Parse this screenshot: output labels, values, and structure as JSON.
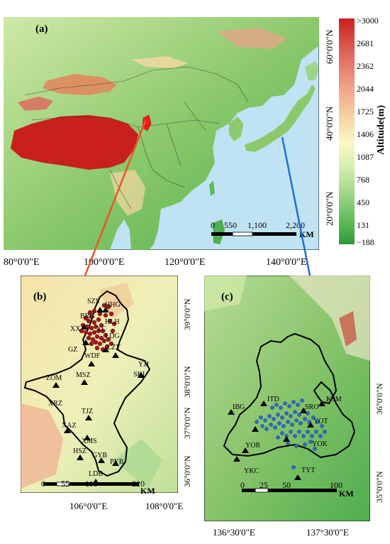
{
  "panels": {
    "a": {
      "label": "(a)",
      "lon_ticks": [
        "80°0'0\"E",
        "100°0'0\"E",
        "120°0'0\"E",
        "140°0'0\"E"
      ],
      "lat_ticks": [
        "60°0'0\"N",
        "40°0'0\"N",
        "20°0'0\"N"
      ],
      "scale_bar": {
        "ticks": [
          "0",
          "550",
          "1,100",
          "2,200"
        ],
        "unit": "KM"
      }
    },
    "b": {
      "label": "(b)",
      "lon_ticks": [
        "106°0'0\"E",
        "108°0'0\"E"
      ],
      "lat_ticks": [
        "39°0'0\"N",
        "38°0'0\"N",
        "37°0'0\"N",
        "36°0'0\"N"
      ],
      "scale_bar": {
        "ticks": [
          "0",
          "55",
          "110",
          "220"
        ],
        "unit": "KM"
      },
      "stations": [
        "SZS",
        "HHG",
        "BRG",
        "HLH",
        "XX",
        "YC",
        "LDG",
        "GZ",
        "LZY",
        "WDF",
        "YJJ",
        "SKL",
        "ZOM",
        "MSZ",
        "XRZ",
        "TJZ",
        "XAZ",
        "XMS",
        "HSZ",
        "GYB",
        "PYB",
        "LDB"
      ]
    },
    "c": {
      "label": "(c)",
      "lon_ticks": [
        "136°30'0\"E",
        "137°30'0\"E"
      ],
      "lat_ticks": [
        "36°0'0\"N",
        "35°0'0\"N"
      ],
      "scale_bar": {
        "ticks": [
          "0",
          "25",
          "50",
          "100"
        ],
        "unit": "KM"
      },
      "stations": [
        "IBG",
        "ITD",
        "KSM",
        "SRO",
        "YOT",
        "YOK",
        "YOR",
        "YKC",
        "TYT"
      ]
    }
  },
  "legend": {
    "title": "Altitude(m)",
    "ticks": [
      ">3000",
      "2681",
      "2362",
      "2044",
      "1725",
      "1406",
      "1087",
      "768",
      "450",
      "131",
      "−188"
    ],
    "colors": [
      "#c8201e",
      "#e0635a",
      "#f0a08a",
      "#f6d7a5",
      "#fbf7c7",
      "#d9efb0",
      "#9fd58a",
      "#5fb95a",
      "#2e9a3b"
    ]
  },
  "colors": {
    "leader_red": "#e8562a",
    "leader_blue": "#1f6fd6",
    "sea": "#bfe3f2",
    "border": "#000000"
  }
}
